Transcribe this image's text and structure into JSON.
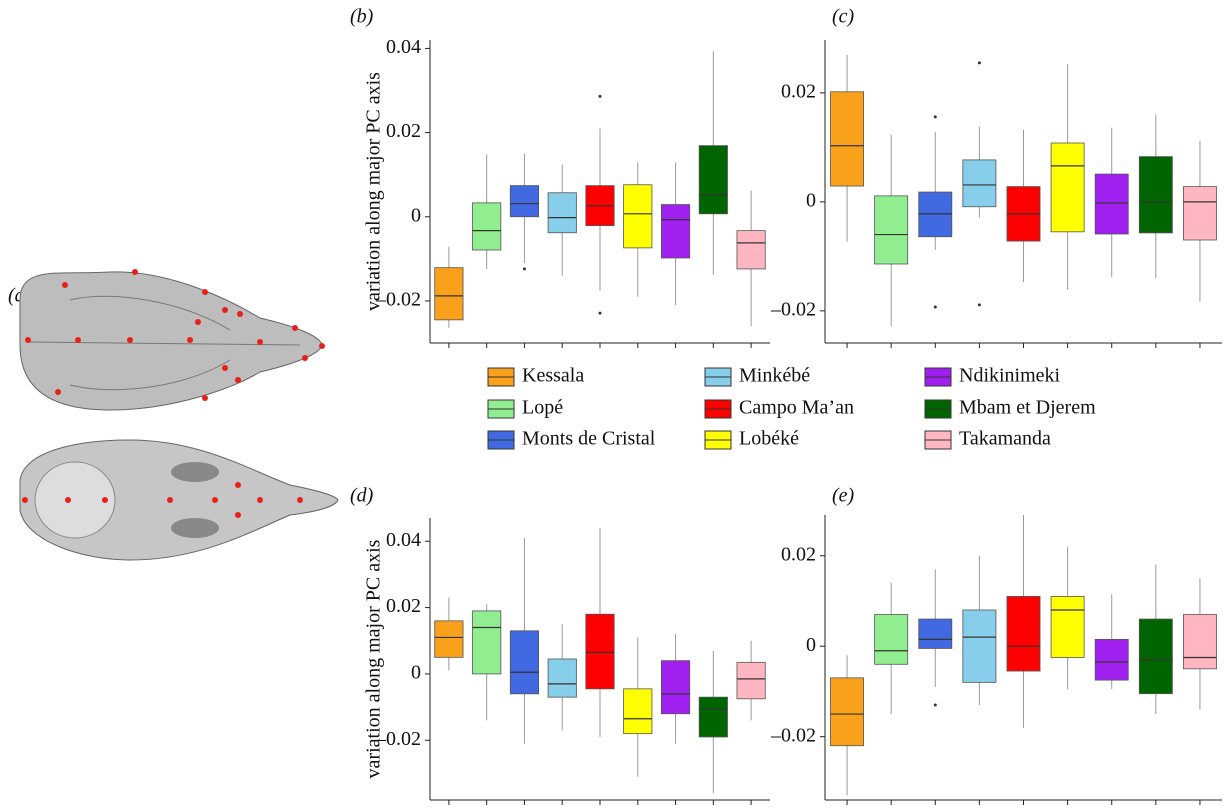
{
  "panel_a": {
    "label": "(a)"
  },
  "legend": [
    {
      "name": "Kessala",
      "color": "#f9a11b"
    },
    {
      "name": "Lopé",
      "color": "#90ee90"
    },
    {
      "name": "Monts de Cristal",
      "color": "#4169e1"
    },
    {
      "name": "Minkébé",
      "color": "#87ceeb"
    },
    {
      "name": "Campo Ma’an",
      "color": "#ff0000"
    },
    {
      "name": "Lobéké",
      "color": "#ffff00"
    },
    {
      "name": "Ndikinimeki",
      "color": "#a020f0"
    },
    {
      "name": "Mbam et Djerem",
      "color": "#006400"
    },
    {
      "name": "Takamanda",
      "color": "#ffb6c1"
    }
  ],
  "chart_data": [
    {
      "type": "box",
      "panel_label": "(b)",
      "ylabel": "variation along major PC axis",
      "ylim": [
        -0.03,
        0.042
      ],
      "yticks": [
        {
          "value": -0.02,
          "label": "–0.02"
        },
        0,
        0.02,
        0.04
      ],
      "series": [
        {
          "min": -0.0264,
          "q1": -0.0245,
          "median": -0.0188,
          "q3": -0.0121,
          "max": -0.0071,
          "outliers": []
        },
        {
          "min": -0.0124,
          "q1": -0.0079,
          "median": -0.0033,
          "q3": 0.0033,
          "max": 0.0148,
          "outliers": []
        },
        {
          "min": -0.011,
          "q1": 0,
          "median": 0.0031,
          "q3": 0.0074,
          "max": 0.015,
          "outliers": [
            -0.0124
          ]
        },
        {
          "min": -0.014,
          "q1": -0.0038,
          "median": -0.0002,
          "q3": 0.0057,
          "max": 0.0124,
          "outliers": []
        },
        {
          "min": -0.0176,
          "q1": -0.0021,
          "median": 0.0026,
          "q3": 0.0074,
          "max": 0.021,
          "outliers": [
            0.0286,
            -0.0229
          ]
        },
        {
          "min": -0.019,
          "q1": -0.0074,
          "median": 0.0007,
          "q3": 0.0076,
          "max": 0.0129,
          "outliers": []
        },
        {
          "min": -0.021,
          "q1": -0.0098,
          "median": -0.0007,
          "q3": 0.0029,
          "max": 0.0129,
          "outliers": []
        },
        {
          "min": -0.0138,
          "q1": 0.0007,
          "median": 0.0052,
          "q3": 0.0169,
          "max": 0.0393,
          "outliers": []
        },
        {
          "min": -0.026,
          "q1": -0.0124,
          "median": -0.0062,
          "q3": -0.0033,
          "max": 0.0062,
          "outliers": []
        }
      ]
    },
    {
      "type": "box",
      "panel_label": "(c)",
      "ylim": [
        -0.0259,
        0.0297
      ],
      "yticks": [
        {
          "value": -0.02,
          "label": "–0.02"
        },
        0,
        0.02
      ],
      "series": [
        {
          "min": -0.0073,
          "q1": 0.0029,
          "median": 0.0103,
          "q3": 0.0202,
          "max": 0.027,
          "outliers": []
        },
        {
          "min": -0.0228,
          "q1": -0.0114,
          "median": -0.006,
          "q3": 0.0011,
          "max": 0.0123,
          "outliers": []
        },
        {
          "min": -0.0088,
          "q1": -0.0064,
          "median": -0.0022,
          "q3": 0.0018,
          "max": 0.0128,
          "outliers": [
            0.0156,
            -0.0193
          ]
        },
        {
          "min": -0.0029,
          "q1": -0.0009,
          "median": 0.0031,
          "q3": 0.0077,
          "max": 0.0138,
          "outliers": [
            0.0255,
            -0.0189
          ]
        },
        {
          "min": -0.0147,
          "q1": -0.0072,
          "median": -0.0022,
          "q3": 0.0028,
          "max": 0.0132,
          "outliers": []
        },
        {
          "min": -0.0161,
          "q1": -0.0055,
          "median": 0.0066,
          "q3": 0.0108,
          "max": 0.0253,
          "outliers": []
        },
        {
          "min": -0.0138,
          "q1": -0.0059,
          "median": -0.0002,
          "q3": 0.0051,
          "max": 0.0136,
          "outliers": []
        },
        {
          "min": -0.014,
          "q1": -0.0057,
          "median": 0,
          "q3": 0.0083,
          "max": 0.016,
          "outliers": []
        },
        {
          "min": -0.0183,
          "q1": -0.007,
          "median": 0,
          "q3": 0.0028,
          "max": 0.0112,
          "outliers": []
        }
      ]
    },
    {
      "type": "box",
      "panel_label": "(d)",
      "ylabel": "variation along major PC axis",
      "ylim": [
        -0.038,
        0.047
      ],
      "yticks": [
        {
          "value": -0.02,
          "label": "–0.02"
        },
        0,
        0.02,
        0.04
      ],
      "series": [
        {
          "min": 0.001,
          "q1": 0.005,
          "median": 0.011,
          "q3": 0.016,
          "max": 0.023,
          "outliers": []
        },
        {
          "min": -0.014,
          "q1": 0,
          "median": 0.014,
          "q3": 0.019,
          "max": 0.021,
          "outliers": []
        },
        {
          "min": -0.021,
          "q1": -0.006,
          "median": 0.0005,
          "q3": 0.013,
          "max": 0.041,
          "outliers": []
        },
        {
          "min": -0.017,
          "q1": -0.007,
          "median": -0.003,
          "q3": 0.0045,
          "max": 0.015,
          "outliers": []
        },
        {
          "min": -0.019,
          "q1": -0.0045,
          "median": 0.0065,
          "q3": 0.018,
          "max": 0.044,
          "outliers": []
        },
        {
          "min": -0.031,
          "q1": -0.018,
          "median": -0.0135,
          "q3": -0.0045,
          "max": 0.011,
          "outliers": []
        },
        {
          "min": -0.021,
          "q1": -0.012,
          "median": -0.006,
          "q3": 0.004,
          "max": 0.012,
          "outliers": []
        },
        {
          "min": -0.036,
          "q1": -0.019,
          "median": -0.0105,
          "q3": -0.007,
          "max": 0.007,
          "outliers": []
        },
        {
          "min": -0.014,
          "q1": -0.0075,
          "median": -0.0015,
          "q3": 0.0035,
          "max": 0.01,
          "outliers": []
        }
      ]
    },
    {
      "type": "box",
      "panel_label": "(e)",
      "ylim": [
        -0.034,
        0.029
      ],
      "yticks": [
        {
          "value": -0.02,
          "label": "–0.02"
        },
        0,
        0.02
      ],
      "series": [
        {
          "min": -0.033,
          "q1": -0.022,
          "median": -0.015,
          "q3": -0.007,
          "max": -0.002,
          "outliers": []
        },
        {
          "min": -0.015,
          "q1": -0.004,
          "median": -0.001,
          "q3": 0.007,
          "max": 0.014,
          "outliers": []
        },
        {
          "min": -0.009,
          "q1": -0.0005,
          "median": 0.0015,
          "q3": 0.006,
          "max": 0.017,
          "outliers": [
            -0.013
          ]
        },
        {
          "min": -0.013,
          "q1": -0.008,
          "median": 0.002,
          "q3": 0.008,
          "max": 0.02,
          "outliers": []
        },
        {
          "min": -0.018,
          "q1": -0.0055,
          "median": 0,
          "q3": 0.011,
          "max": 0.029,
          "outliers": []
        },
        {
          "min": -0.0095,
          "q1": -0.0025,
          "median": 0.008,
          "q3": 0.011,
          "max": 0.022,
          "outliers": []
        },
        {
          "min": -0.0095,
          "q1": -0.0075,
          "median": -0.0035,
          "q3": 0.0015,
          "max": 0.0115,
          "outliers": []
        },
        {
          "min": -0.015,
          "q1": -0.0105,
          "median": -0.003,
          "q3": 0.006,
          "max": 0.018,
          "outliers": []
        },
        {
          "min": -0.014,
          "q1": -0.005,
          "median": -0.0025,
          "q3": 0.007,
          "max": 0.015,
          "outliers": []
        }
      ]
    }
  ]
}
